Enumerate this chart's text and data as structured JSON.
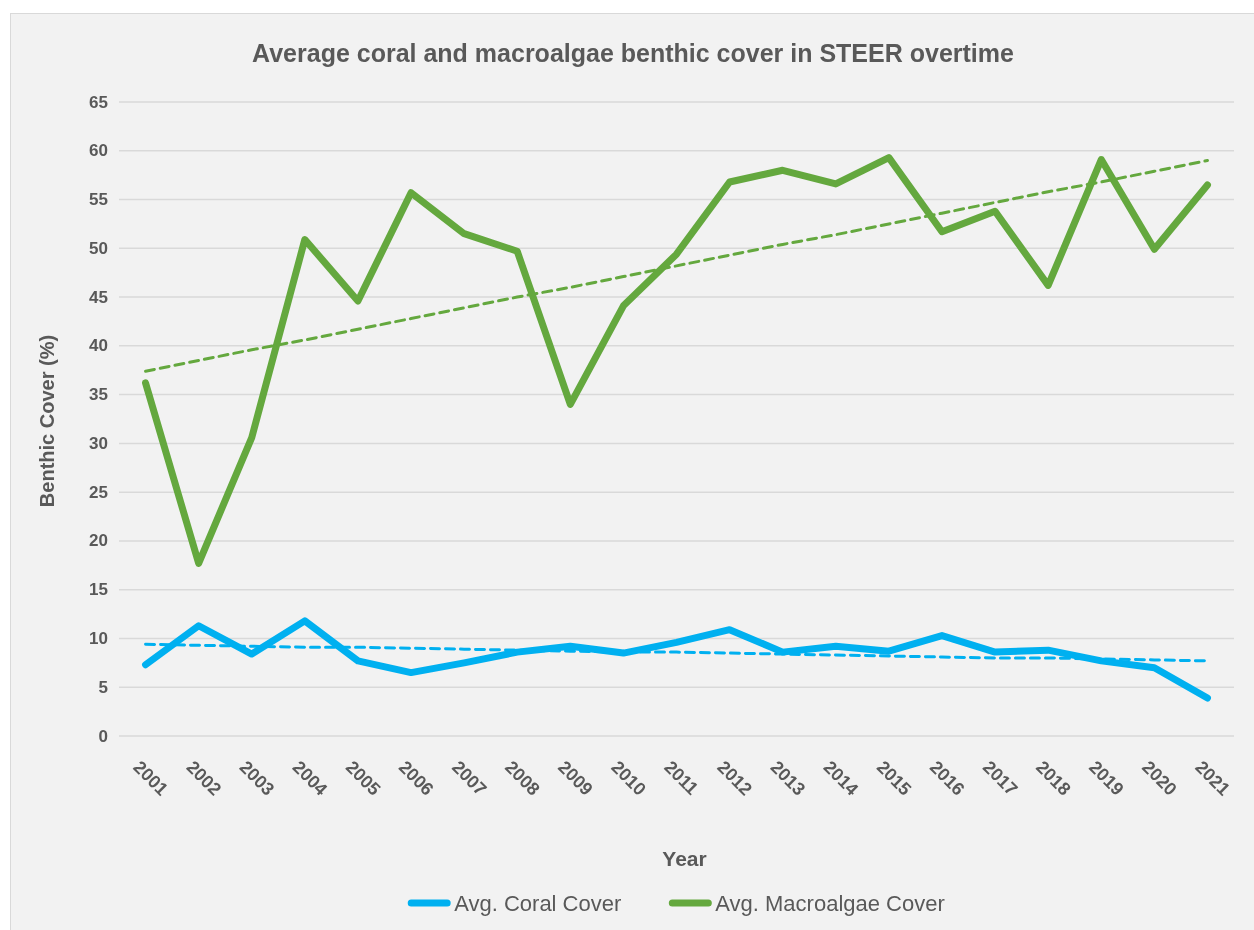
{
  "chart_data": {
    "type": "line",
    "title": "Average coral and macroalgae benthic cover in STEER overtime",
    "xlabel": "Year",
    "ylabel": "Benthic Cover (%)",
    "x": [
      2001,
      2002,
      2003,
      2004,
      2005,
      2006,
      2007,
      2008,
      2009,
      2010,
      2011,
      2012,
      2013,
      2014,
      2015,
      2016,
      2017,
      2018,
      2019,
      2020,
      2021
    ],
    "xlim": [
      2000.5,
      2021.5
    ],
    "xticks": [
      2001,
      2002,
      2003,
      2004,
      2005,
      2006,
      2007,
      2008,
      2009,
      2010,
      2011,
      2012,
      2013,
      2014,
      2015,
      2016,
      2017,
      2018,
      2019,
      2020,
      2021
    ],
    "ylim": [
      0,
      65
    ],
    "yticks": [
      0,
      5,
      10,
      15,
      20,
      25,
      30,
      35,
      40,
      45,
      50,
      55,
      60,
      65
    ],
    "grid": "y",
    "legend": "bottom",
    "series": [
      {
        "name": "Avg. Coral Cover",
        "color": "#00b0f0",
        "values": [
          7.3,
          11.3,
          8.4,
          11.8,
          7.7,
          6.5,
          7.5,
          8.6,
          9.2,
          8.5,
          9.6,
          10.9,
          8.6,
          9.2,
          8.7,
          10.3,
          8.6,
          8.8,
          7.7,
          7.0,
          3.9
        ]
      },
      {
        "name": "Avg. Macroalgae Cover",
        "color": "#64a83e",
        "values": [
          36.2,
          17.7,
          30.6,
          50.9,
          44.6,
          55.7,
          51.5,
          49.7,
          34.0,
          44.1,
          49.4,
          56.8,
          58.0,
          56.6,
          59.3,
          51.7,
          53.8,
          46.2,
          59.1,
          49.9,
          56.5
        ]
      },
      {
        "type": "line",
        "color": "#00b0f0",
        "line_style": "dashed",
        "values": [
          9.4,
          9.3,
          9.2,
          9.1,
          9.1,
          9.0,
          8.9,
          8.8,
          8.7,
          8.6,
          8.6,
          8.5,
          8.4,
          8.3,
          8.2,
          8.1,
          8.0,
          8.0,
          7.9,
          7.8,
          7.7
        ]
      },
      {
        "type": "line",
        "color": "#64a83e",
        "line_style": "dashed",
        "values": [
          37.4,
          38.5,
          39.6,
          40.6,
          41.7,
          42.8,
          43.9,
          45.0,
          46.0,
          47.1,
          48.2,
          49.3,
          50.4,
          51.4,
          52.5,
          53.6,
          54.7,
          55.8,
          56.8,
          57.9,
          59.0
        ]
      }
    ]
  }
}
